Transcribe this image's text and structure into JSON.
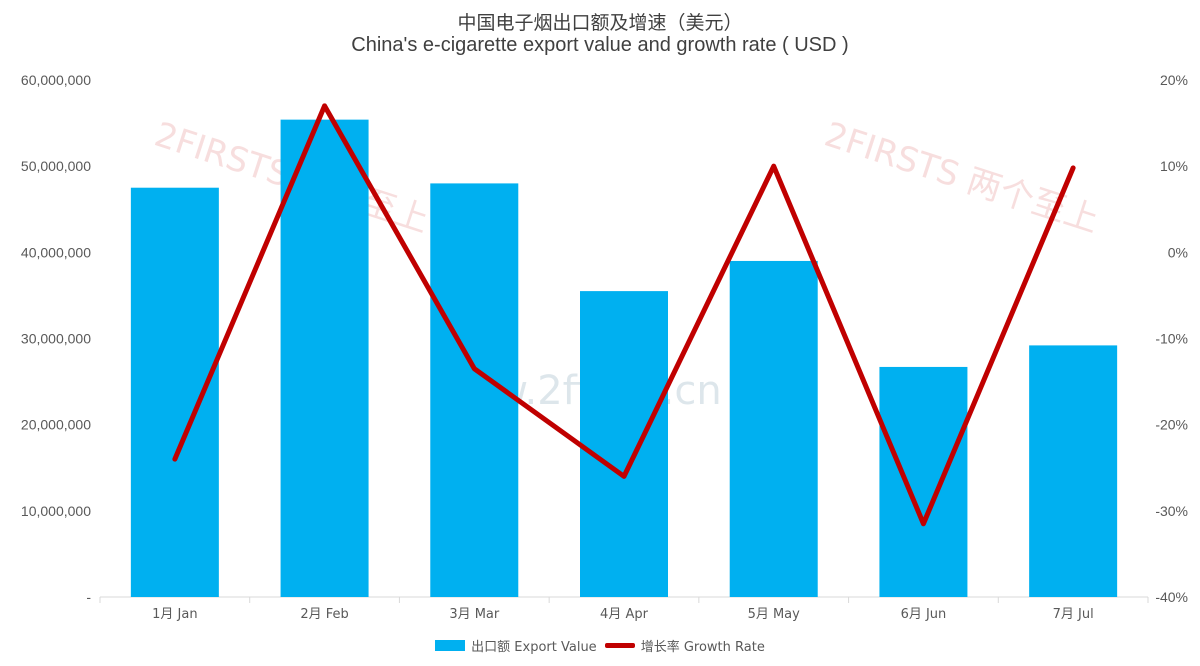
{
  "title_zh": "中国电子烟出口额及增速（美元）",
  "title_en": "China's e-cigarette export value and growth rate ( USD )",
  "watermark": {
    "brand": "2FIRSTS 两个至上",
    "url": "www.2firsts.cn"
  },
  "colors": {
    "bar": "#00B0F0",
    "line": "#C00000",
    "axis": "#D9D9D9",
    "watermark": "#F2C4C4"
  },
  "legend": {
    "bar_label": "出口额 Export Value",
    "line_label": "增长率 Growth Rate"
  },
  "chart_data": {
    "type": "bar",
    "categories": [
      "1月 Jan",
      "2月 Feb",
      "3月 Mar",
      "4月 Apr",
      "5月 May",
      "6月 Jun",
      "7月 Jul"
    ],
    "series": [
      {
        "name": "出口额 Export Value",
        "type": "bar",
        "axis": "left",
        "values": [
          47500000,
          55400000,
          48000000,
          35500000,
          39000000,
          26700000,
          29200000
        ]
      },
      {
        "name": "增长率 Growth Rate",
        "type": "line",
        "axis": "right",
        "values": [
          -24,
          17,
          -13.5,
          -26,
          10,
          -31.5,
          9.8
        ]
      }
    ],
    "y_left": {
      "ylim": [
        0,
        60000000
      ],
      "ticks": [
        0,
        10000000,
        20000000,
        30000000,
        40000000,
        50000000,
        60000000
      ],
      "tick_labels": [
        "-",
        "10,000,000",
        "20,000,000",
        "30,000,000",
        "40,000,000",
        "50,000,000",
        "60,000,000"
      ]
    },
    "y_right": {
      "ylim": [
        -40,
        20
      ],
      "ticks": [
        -40,
        -30,
        -20,
        -10,
        0,
        10,
        20
      ],
      "tick_labels": [
        "-40%",
        "-30%",
        "-20%",
        "-10%",
        "0%",
        "10%",
        "20%"
      ]
    },
    "grid": false,
    "legend_position": "bottom"
  }
}
